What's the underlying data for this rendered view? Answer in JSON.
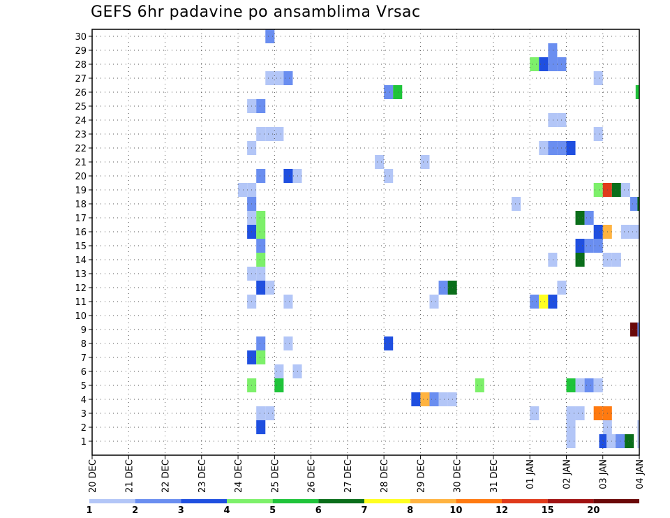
{
  "chart_data": {
    "type": "heatmap",
    "title": "GEFS 6hr padavine po ansamblima Vrsac",
    "x_tick_labels": [
      "20 DEC",
      "21 DEC",
      "22 DEC",
      "23 DEC",
      "24 DEC",
      "25 DEC",
      "26 DEC",
      "27 DEC",
      "28 DEC",
      "29 DEC",
      "30 DEC",
      "31 DEC",
      "01 JAN",
      "02 JAN",
      "03 JAN",
      "04 JAN"
    ],
    "y_tick_labels": [
      "1",
      "2",
      "3",
      "4",
      "5",
      "6",
      "7",
      "8",
      "9",
      "10",
      "11",
      "12",
      "13",
      "14",
      "15",
      "16",
      "17",
      "18",
      "19",
      "20",
      "21",
      "22",
      "23",
      "24",
      "25",
      "26",
      "27",
      "28",
      "29",
      "30"
    ],
    "xlim_days": [
      0,
      15
    ],
    "ylim": [
      0,
      30
    ],
    "grid": true,
    "legend": {
      "position": "bottom",
      "tick_labels": [
        "1",
        "2",
        "3",
        "4",
        "5",
        "6",
        "7",
        "8",
        "10",
        "12",
        "15",
        "20"
      ],
      "colors": [
        "#b3c6f7",
        "#6a8ef0",
        "#1f4fe0",
        "#7df06a",
        "#1fc43a",
        "#0a6e1a",
        "#ffff20",
        "#ffb340",
        "#ff7a10",
        "#e03a1a",
        "#a01212",
        "#6a0808"
      ]
    },
    "cells": [
      {
        "m": 30,
        "d": 4.75,
        "c": 2
      },
      {
        "m": 29,
        "d": 12.5,
        "c": 2
      },
      {
        "m": 28,
        "d": 12.0,
        "c": 4
      },
      {
        "m": 28,
        "d": 12.25,
        "c": 3
      },
      {
        "m": 28,
        "d": 12.5,
        "c": 2
      },
      {
        "m": 28,
        "d": 12.75,
        "c": 2
      },
      {
        "m": 27,
        "d": 4.75,
        "c": 1
      },
      {
        "m": 27,
        "d": 5.0,
        "c": 1
      },
      {
        "m": 27,
        "d": 5.25,
        "c": 2
      },
      {
        "m": 27,
        "d": 13.75,
        "c": 1
      },
      {
        "m": 26,
        "d": 8.0,
        "c": 2
      },
      {
        "m": 26,
        "d": 8.25,
        "c": 5
      },
      {
        "m": 26,
        "d": 14.9,
        "c": 5
      },
      {
        "m": 25,
        "d": 4.25,
        "c": 1
      },
      {
        "m": 25,
        "d": 4.5,
        "c": 2
      },
      {
        "m": 24,
        "d": 12.5,
        "c": 1
      },
      {
        "m": 24,
        "d": 12.75,
        "c": 1
      },
      {
        "m": 23,
        "d": 4.5,
        "c": 1
      },
      {
        "m": 23,
        "d": 4.75,
        "c": 1
      },
      {
        "m": 23,
        "d": 5.0,
        "c": 1
      },
      {
        "m": 23,
        "d": 13.75,
        "c": 1
      },
      {
        "m": 22,
        "d": 4.25,
        "c": 1
      },
      {
        "m": 22,
        "d": 12.25,
        "c": 1
      },
      {
        "m": 22,
        "d": 12.5,
        "c": 2
      },
      {
        "m": 22,
        "d": 12.75,
        "c": 2
      },
      {
        "m": 22,
        "d": 13.0,
        "c": 3
      },
      {
        "m": 21,
        "d": 7.75,
        "c": 1
      },
      {
        "m": 21,
        "d": 9.0,
        "c": 1
      },
      {
        "m": 20,
        "d": 4.5,
        "c": 2
      },
      {
        "m": 20,
        "d": 5.25,
        "c": 3
      },
      {
        "m": 20,
        "d": 5.5,
        "c": 1
      },
      {
        "m": 20,
        "d": 8.0,
        "c": 1
      },
      {
        "m": 19,
        "d": 4.0,
        "c": 1
      },
      {
        "m": 19,
        "d": 4.25,
        "c": 1
      },
      {
        "m": 19,
        "d": 13.75,
        "c": 4
      },
      {
        "m": 19,
        "d": 14.0,
        "c": 10
      },
      {
        "m": 19,
        "d": 14.25,
        "c": 6
      },
      {
        "m": 19,
        "d": 14.5,
        "c": 1
      },
      {
        "m": 18,
        "d": 4.25,
        "c": 2
      },
      {
        "m": 18,
        "d": 11.5,
        "c": 1
      },
      {
        "m": 18,
        "d": 14.75,
        "c": 2
      },
      {
        "m": 18,
        "d": 14.95,
        "c": 6
      },
      {
        "m": 17,
        "d": 4.25,
        "c": 1
      },
      {
        "m": 17,
        "d": 4.5,
        "c": 4
      },
      {
        "m": 17,
        "d": 13.25,
        "c": 6
      },
      {
        "m": 17,
        "d": 13.5,
        "c": 2
      },
      {
        "m": 16,
        "d": 4.25,
        "c": 3
      },
      {
        "m": 16,
        "d": 4.5,
        "c": 4
      },
      {
        "m": 16,
        "d": 13.75,
        "c": 3
      },
      {
        "m": 16,
        "d": 14.0,
        "c": 8
      },
      {
        "m": 16,
        "d": 14.5,
        "c": 1
      },
      {
        "m": 16,
        "d": 14.75,
        "c": 1
      },
      {
        "m": 15,
        "d": 4.5,
        "c": 2
      },
      {
        "m": 15,
        "d": 13.25,
        "c": 3
      },
      {
        "m": 15,
        "d": 13.5,
        "c": 2
      },
      {
        "m": 15,
        "d": 13.75,
        "c": 2
      },
      {
        "m": 14,
        "d": 4.5,
        "c": 4
      },
      {
        "m": 14,
        "d": 12.5,
        "c": 1
      },
      {
        "m": 14,
        "d": 13.25,
        "c": 6
      },
      {
        "m": 14,
        "d": 14.0,
        "c": 1
      },
      {
        "m": 14,
        "d": 14.25,
        "c": 1
      },
      {
        "m": 13,
        "d": 4.25,
        "c": 1
      },
      {
        "m": 13,
        "d": 4.5,
        "c": 1
      },
      {
        "m": 12,
        "d": 4.5,
        "c": 3
      },
      {
        "m": 12,
        "d": 4.75,
        "c": 1
      },
      {
        "m": 12,
        "d": 9.5,
        "c": 2
      },
      {
        "m": 12,
        "d": 9.75,
        "c": 6
      },
      {
        "m": 12,
        "d": 12.75,
        "c": 1
      },
      {
        "m": 11,
        "d": 4.25,
        "c": 1
      },
      {
        "m": 11,
        "d": 5.25,
        "c": 1
      },
      {
        "m": 11,
        "d": 9.25,
        "c": 1
      },
      {
        "m": 11,
        "d": 12.0,
        "c": 2
      },
      {
        "m": 11,
        "d": 12.25,
        "c": 7
      },
      {
        "m": 11,
        "d": 12.5,
        "c": 3
      },
      {
        "m": 9,
        "d": 14.75,
        "c": 12
      },
      {
        "m": 9,
        "d": 14.95,
        "c": 2
      },
      {
        "m": 8,
        "d": 4.5,
        "c": 2
      },
      {
        "m": 8,
        "d": 5.25,
        "c": 1
      },
      {
        "m": 8,
        "d": 8.0,
        "c": 3
      },
      {
        "m": 7,
        "d": 4.25,
        "c": 3
      },
      {
        "m": 7,
        "d": 4.5,
        "c": 4
      },
      {
        "m": 6,
        "d": 5.0,
        "c": 1
      },
      {
        "m": 6,
        "d": 5.5,
        "c": 1
      },
      {
        "m": 5,
        "d": 4.25,
        "c": 4
      },
      {
        "m": 5,
        "d": 5.0,
        "c": 5
      },
      {
        "m": 5,
        "d": 10.5,
        "c": 4
      },
      {
        "m": 5,
        "d": 13.0,
        "c": 5
      },
      {
        "m": 5,
        "d": 13.25,
        "c": 1
      },
      {
        "m": 5,
        "d": 13.5,
        "c": 2
      },
      {
        "m": 5,
        "d": 13.75,
        "c": 1
      },
      {
        "m": 4,
        "d": 8.75,
        "c": 3
      },
      {
        "m": 4,
        "d": 9.0,
        "c": 8
      },
      {
        "m": 4,
        "d": 9.25,
        "c": 2
      },
      {
        "m": 4,
        "d": 9.5,
        "c": 1
      },
      {
        "m": 4,
        "d": 9.75,
        "c": 1
      },
      {
        "m": 3,
        "d": 4.5,
        "c": 1
      },
      {
        "m": 3,
        "d": 4.75,
        "c": 1
      },
      {
        "m": 3,
        "d": 12.0,
        "c": 1
      },
      {
        "m": 3,
        "d": 13.0,
        "c": 1
      },
      {
        "m": 3,
        "d": 13.25,
        "c": 1
      },
      {
        "m": 3,
        "d": 13.75,
        "c": 9
      },
      {
        "m": 3,
        "d": 14.0,
        "c": 9
      },
      {
        "m": 2,
        "d": 4.5,
        "c": 3
      },
      {
        "m": 2,
        "d": 13.0,
        "c": 1
      },
      {
        "m": 2,
        "d": 14.0,
        "c": 1
      },
      {
        "m": 2,
        "d": 14.95,
        "c": 1
      },
      {
        "m": 1,
        "d": 13.0,
        "c": 1
      },
      {
        "m": 1,
        "d": 13.9,
        "c": 3
      },
      {
        "m": 1,
        "d": 14.1,
        "c": 1
      },
      {
        "m": 1,
        "d": 14.35,
        "c": 2
      },
      {
        "m": 1,
        "d": 14.6,
        "c": 6
      },
      {
        "m": 1,
        "d": 14.95,
        "c": 1
      }
    ]
  }
}
